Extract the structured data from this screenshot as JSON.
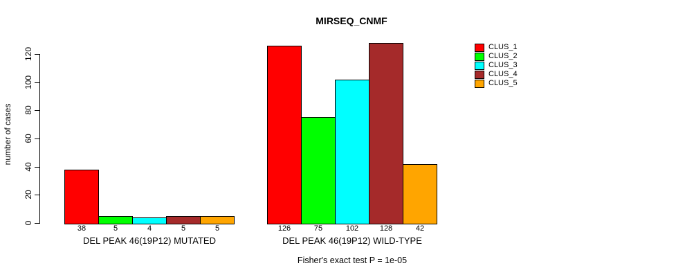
{
  "chart_data": {
    "type": "bar",
    "title": "MIRSEQ_CNMF",
    "ylabel": "number of cases",
    "xlabel": "",
    "ylim": [
      0,
      120
    ],
    "yticks": [
      0,
      20,
      40,
      60,
      80,
      100,
      120
    ],
    "grid": false,
    "legend_position": "right",
    "bar_value_labels_shown": true,
    "categories": [
      "DEL PEAK 46(19P12) MUTATED",
      "DEL PEAK 46(19P12) WILD-TYPE"
    ],
    "series": [
      {
        "name": "CLUS_1",
        "color": "#FF0000",
        "values": [
          38,
          126
        ]
      },
      {
        "name": "CLUS_2",
        "color": "#00FF00",
        "values": [
          5,
          75
        ]
      },
      {
        "name": "CLUS_3",
        "color": "#00FFFF",
        "values": [
          4,
          102
        ]
      },
      {
        "name": "CLUS_4",
        "color": "#A52A2A",
        "values": [
          5,
          128
        ]
      },
      {
        "name": "CLUS_5",
        "color": "#FFA500",
        "values": [
          5,
          42
        ]
      }
    ],
    "annotation": "Fisher's exact test P = 1e-05"
  }
}
